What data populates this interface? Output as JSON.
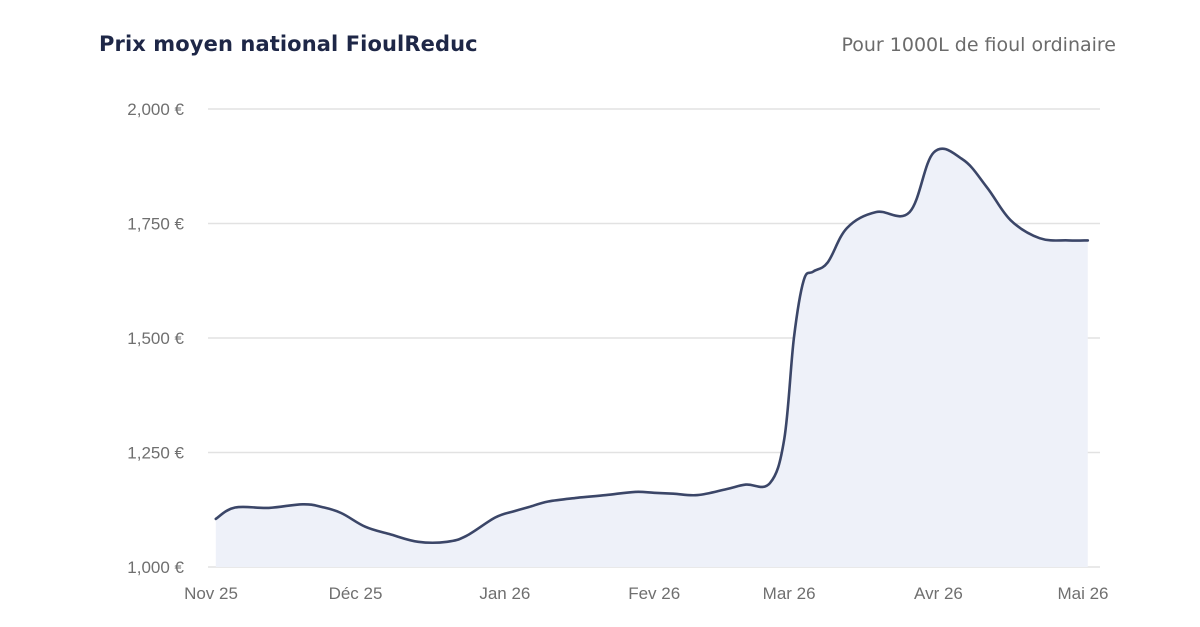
{
  "header": {
    "title": "Prix moyen national FioulReduc",
    "subtitle": "Pour 1000L de fioul ordinaire"
  },
  "colors": {
    "line": "#3b4668",
    "area": "#eef1f9",
    "grid": "#e2e2e2",
    "text": "#1e2747"
  },
  "chart_data": {
    "type": "area",
    "title": "Prix moyen national FioulReduc",
    "subtitle": "Pour 1000L de fioul ordinaire",
    "xlabel": "",
    "ylabel": "",
    "ylim": [
      1000,
      2000
    ],
    "grid": true,
    "x_ticks": [
      {
        "label": "Nov 25",
        "x": "2025-11-01"
      },
      {
        "label": "Déc 25",
        "x": "2025-12-01"
      },
      {
        "label": "Jan 26",
        "x": "2026-01-01"
      },
      {
        "label": "Fev 26",
        "x": "2026-02-01"
      },
      {
        "label": "Mar 26",
        "x": "2026-03-01"
      },
      {
        "label": "Avr 26",
        "x": "2026-04-01"
      },
      {
        "label": "Mai 26",
        "x": "2026-05-01"
      }
    ],
    "y_ticks": [
      {
        "label": "1,000 €",
        "value": 1000
      },
      {
        "label": "1,250 €",
        "value": 1250
      },
      {
        "label": "1,500 €",
        "value": 1500
      },
      {
        "label": "1,750 €",
        "value": 1750
      },
      {
        "label": "2,000 €",
        "value": 2000
      }
    ],
    "series": [
      {
        "x": [
          "2025-11-02",
          "2025-11-06",
          "2025-11-13",
          "2025-11-20",
          "2025-11-24",
          "2025-11-28",
          "2025-12-03",
          "2025-12-08",
          "2025-12-14",
          "2025-12-20",
          "2025-12-24",
          "2025-12-30",
          "2026-01-03",
          "2026-01-06",
          "2026-01-10",
          "2026-01-16",
          "2026-01-22",
          "2026-01-28",
          "2026-02-01",
          "2026-02-05",
          "2026-02-10",
          "2026-02-16",
          "2026-02-20",
          "2026-02-25",
          "2026-02-28",
          "2026-03-02",
          "2026-03-04",
          "2026-03-06",
          "2026-03-09",
          "2026-03-13",
          "2026-03-19",
          "2026-03-26",
          "2026-03-31",
          "2026-04-06",
          "2026-04-11",
          "2026-04-16",
          "2026-04-22",
          "2026-04-28",
          "2026-05-02"
        ],
        "values": [
          1105,
          1130,
          1129,
          1137,
          1131,
          1118,
          1088,
          1072,
          1055,
          1055,
          1068,
          1108,
          1122,
          1131,
          1143,
          1151,
          1157,
          1164,
          1162,
          1160,
          1157,
          1170,
          1180,
          1183,
          1280,
          1500,
          1625,
          1645,
          1665,
          1740,
          1775,
          1775,
          1905,
          1890,
          1830,
          1757,
          1718,
          1713,
          1713
        ]
      }
    ]
  }
}
